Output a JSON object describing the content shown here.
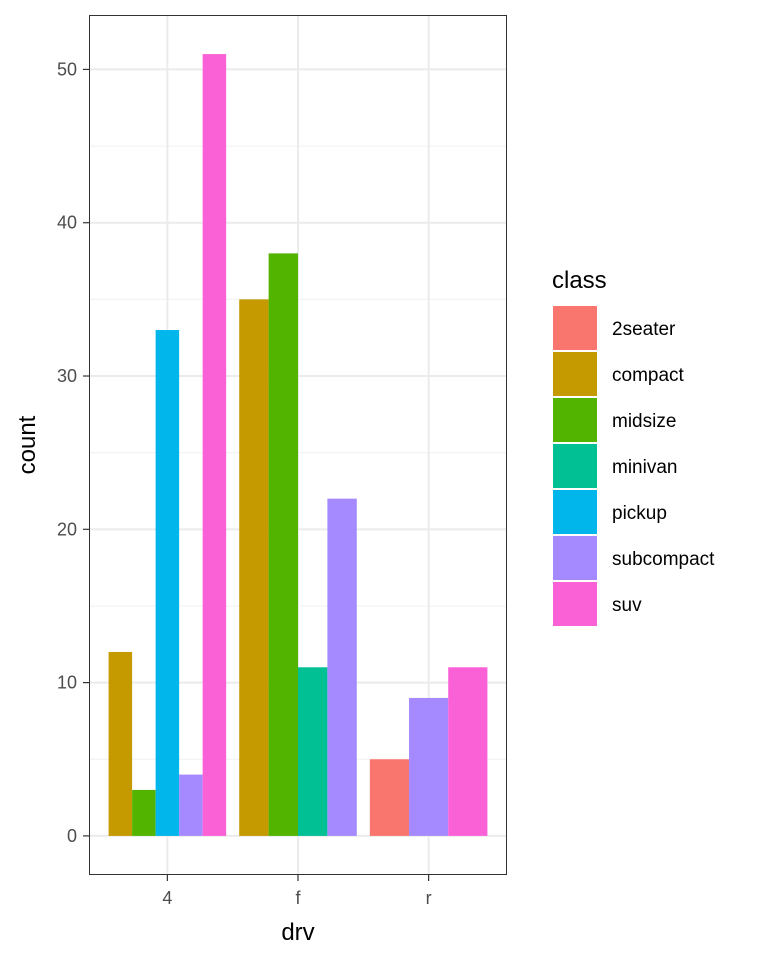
{
  "chart_data": {
    "type": "bar",
    "position": "dodge",
    "xlabel": "drv",
    "ylabel": "count",
    "categories": [
      "4",
      "f",
      "r"
    ],
    "ylim": [
      -2.55,
      53.55
    ],
    "y_ticks": [
      0,
      10,
      20,
      30,
      40,
      50
    ],
    "grid": true,
    "theme": "bw",
    "legend": {
      "title": "class",
      "position": "right"
    },
    "series": [
      {
        "name": "2seater",
        "color": "#F8766D",
        "values": [
          0,
          0,
          5
        ]
      },
      {
        "name": "compact",
        "color": "#C49A00",
        "values": [
          12,
          35,
          0
        ]
      },
      {
        "name": "midsize",
        "color": "#53B400",
        "values": [
          3,
          38,
          0
        ]
      },
      {
        "name": "minivan",
        "color": "#00C094",
        "values": [
          0,
          11,
          0
        ]
      },
      {
        "name": "pickup",
        "color": "#00B6EB",
        "values": [
          33,
          0,
          0
        ]
      },
      {
        "name": "subcompact",
        "color": "#A58AFF",
        "values": [
          4,
          22,
          9
        ]
      },
      {
        "name": "suv",
        "color": "#FB61D7",
        "values": [
          51,
          0,
          11
        ]
      }
    ]
  }
}
